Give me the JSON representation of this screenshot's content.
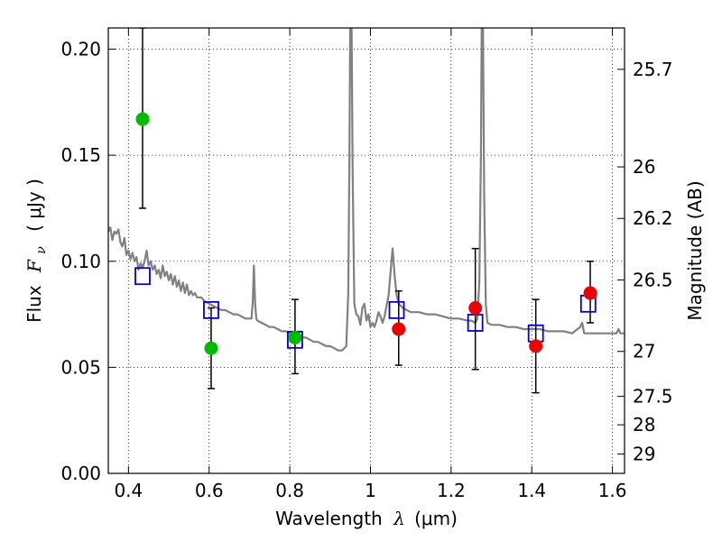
{
  "chart_data": {
    "type": "scatter",
    "xlabel_prefix": "Wavelength",
    "xlabel_symbol": "λ",
    "xlabel_unit": "(μm)",
    "ylabel_prefix": "Flux",
    "ylabel_symbol": "F",
    "ylabel_subscript": "ν",
    "ylabel_unit": "( μJy )",
    "y2label": "Magnitude (AB)",
    "xlim": [
      0.35,
      1.63
    ],
    "ylim": [
      0.0,
      0.21
    ],
    "grid": true,
    "x_ticks": [
      0.4,
      0.6,
      0.8,
      1.0,
      1.2,
      1.4,
      1.6
    ],
    "x_tick_labels": [
      "0.4",
      "0.6",
      "0.8",
      "1",
      "1.2",
      "1.4",
      "1.6"
    ],
    "y_ticks": [
      0.0,
      0.05,
      0.1,
      0.15,
      0.2
    ],
    "y_tick_labels": [
      "0.00",
      "0.05",
      "0.10",
      "0.15",
      "0.20"
    ],
    "y2_ticks": [
      {
        "label": "25.7",
        "flux": 0.1905
      },
      {
        "label": "26",
        "flux": 0.1445
      },
      {
        "label": "26.2",
        "flux": 0.1202
      },
      {
        "label": "26.5",
        "flux": 0.0912
      },
      {
        "label": "27",
        "flux": 0.0575
      },
      {
        "label": "27.5",
        "flux": 0.0363
      },
      {
        "label": "28",
        "flux": 0.0229
      },
      {
        "label": "29",
        "flux": 0.0091
      }
    ],
    "spectrum": {
      "color": "#808080",
      "points": [
        [
          0.35,
          0.114
        ],
        [
          0.355,
          0.116
        ],
        [
          0.36,
          0.11
        ],
        [
          0.365,
          0.114
        ],
        [
          0.37,
          0.113
        ],
        [
          0.375,
          0.115
        ],
        [
          0.38,
          0.109
        ],
        [
          0.385,
          0.107
        ],
        [
          0.39,
          0.111
        ],
        [
          0.395,
          0.103
        ],
        [
          0.4,
          0.105
        ],
        [
          0.405,
          0.101
        ],
        [
          0.41,
          0.104
        ],
        [
          0.415,
          0.1
        ],
        [
          0.42,
          0.102
        ],
        [
          0.425,
          0.096
        ],
        [
          0.43,
          0.099
        ],
        [
          0.435,
          0.097
        ],
        [
          0.44,
          0.1
        ],
        [
          0.445,
          0.105
        ],
        [
          0.45,
          0.098
        ],
        [
          0.455,
          0.1
        ],
        [
          0.46,
          0.096
        ],
        [
          0.465,
          0.098
        ],
        [
          0.47,
          0.094
        ],
        [
          0.475,
          0.096
        ],
        [
          0.48,
          0.092
        ],
        [
          0.485,
          0.098
        ],
        [
          0.49,
          0.093
        ],
        [
          0.495,
          0.095
        ],
        [
          0.5,
          0.091
        ],
        [
          0.505,
          0.094
        ],
        [
          0.51,
          0.089
        ],
        [
          0.515,
          0.093
        ],
        [
          0.52,
          0.088
        ],
        [
          0.525,
          0.091
        ],
        [
          0.53,
          0.086
        ],
        [
          0.535,
          0.09
        ],
        [
          0.54,
          0.085
        ],
        [
          0.545,
          0.089
        ],
        [
          0.55,
          0.084
        ],
        [
          0.555,
          0.086
        ],
        [
          0.56,
          0.084
        ],
        [
          0.565,
          0.085
        ],
        [
          0.57,
          0.083
        ],
        [
          0.58,
          0.083
        ],
        [
          0.59,
          0.081
        ],
        [
          0.6,
          0.08
        ],
        [
          0.61,
          0.079
        ],
        [
          0.62,
          0.078
        ],
        [
          0.63,
          0.077
        ],
        [
          0.64,
          0.077
        ],
        [
          0.65,
          0.076
        ],
        [
          0.66,
          0.075
        ],
        [
          0.67,
          0.075
        ],
        [
          0.68,
          0.074
        ],
        [
          0.69,
          0.073
        ],
        [
          0.7,
          0.073
        ],
        [
          0.705,
          0.073
        ],
        [
          0.708,
          0.08
        ],
        [
          0.711,
          0.098
        ],
        [
          0.714,
          0.08
        ],
        [
          0.717,
          0.073
        ],
        [
          0.72,
          0.072
        ],
        [
          0.73,
          0.071
        ],
        [
          0.74,
          0.07
        ],
        [
          0.75,
          0.069
        ],
        [
          0.76,
          0.069
        ],
        [
          0.77,
          0.068
        ],
        [
          0.78,
          0.067
        ],
        [
          0.79,
          0.067
        ],
        [
          0.8,
          0.066
        ],
        [
          0.81,
          0.065
        ],
        [
          0.82,
          0.065
        ],
        [
          0.83,
          0.064
        ],
        [
          0.84,
          0.064
        ],
        [
          0.85,
          0.063
        ],
        [
          0.86,
          0.062
        ],
        [
          0.87,
          0.062
        ],
        [
          0.88,
          0.061
        ],
        [
          0.89,
          0.06
        ],
        [
          0.9,
          0.06
        ],
        [
          0.91,
          0.059
        ],
        [
          0.92,
          0.058
        ],
        [
          0.93,
          0.058
        ],
        [
          0.94,
          0.06
        ],
        [
          0.945,
          0.085
        ],
        [
          0.948,
          0.15
        ],
        [
          0.95,
          0.215
        ],
        [
          0.953,
          0.215
        ],
        [
          0.956,
          0.14
        ],
        [
          0.96,
          0.08
        ],
        [
          0.965,
          0.075
        ],
        [
          0.97,
          0.074
        ],
        [
          0.975,
          0.07
        ],
        [
          0.98,
          0.078
        ],
        [
          0.985,
          0.08
        ],
        [
          0.99,
          0.072
        ],
        [
          0.995,
          0.075
        ],
        [
          1.0,
          0.069
        ],
        [
          1.005,
          0.071
        ],
        [
          1.01,
          0.069
        ],
        [
          1.015,
          0.072
        ],
        [
          1.02,
          0.076
        ],
        [
          1.025,
          0.074
        ],
        [
          1.03,
          0.071
        ],
        [
          1.035,
          0.074
        ],
        [
          1.04,
          0.079
        ],
        [
          1.045,
          0.084
        ],
        [
          1.05,
          0.095
        ],
        [
          1.055,
          0.106
        ],
        [
          1.06,
          0.093
        ],
        [
          1.065,
          0.084
        ],
        [
          1.07,
          0.08
        ],
        [
          1.08,
          0.078
        ],
        [
          1.09,
          0.077
        ],
        [
          1.1,
          0.076
        ],
        [
          1.12,
          0.076
        ],
        [
          1.14,
          0.075
        ],
        [
          1.16,
          0.075
        ],
        [
          1.18,
          0.074
        ],
        [
          1.2,
          0.073
        ],
        [
          1.22,
          0.073
        ],
        [
          1.24,
          0.072
        ],
        [
          1.25,
          0.072
        ],
        [
          1.26,
          0.071
        ],
        [
          1.265,
          0.073
        ],
        [
          1.27,
          0.09
        ],
        [
          1.274,
          0.15
        ],
        [
          1.276,
          0.215
        ],
        [
          1.279,
          0.215
        ],
        [
          1.282,
          0.13
        ],
        [
          1.286,
          0.08
        ],
        [
          1.29,
          0.071
        ],
        [
          1.3,
          0.07
        ],
        [
          1.32,
          0.07
        ],
        [
          1.34,
          0.069
        ],
        [
          1.36,
          0.069
        ],
        [
          1.38,
          0.068
        ],
        [
          1.4,
          0.068
        ],
        [
          1.42,
          0.068
        ],
        [
          1.44,
          0.067
        ],
        [
          1.46,
          0.067
        ],
        [
          1.48,
          0.067
        ],
        [
          1.5,
          0.066
        ],
        [
          1.52,
          0.069
        ],
        [
          1.525,
          0.071
        ],
        [
          1.53,
          0.066
        ],
        [
          1.54,
          0.066
        ],
        [
          1.56,
          0.066
        ],
        [
          1.58,
          0.066
        ],
        [
          1.6,
          0.066
        ],
        [
          1.61,
          0.066
        ],
        [
          1.615,
          0.068
        ],
        [
          1.62,
          0.066
        ],
        [
          1.63,
          0.066
        ]
      ]
    },
    "model_points": {
      "color": "#0000cc",
      "marker": "open-square",
      "points": [
        {
          "x": 0.435,
          "y": 0.093
        },
        {
          "x": 0.605,
          "y": 0.077
        },
        {
          "x": 0.813,
          "y": 0.063
        },
        {
          "x": 1.065,
          "y": 0.077
        },
        {
          "x": 1.26,
          "y": 0.071
        },
        {
          "x": 1.41,
          "y": 0.066
        },
        {
          "x": 1.54,
          "y": 0.08
        }
      ]
    },
    "observations": [
      {
        "x": 0.435,
        "y": 0.167,
        "ylow": 0.125,
        "yhigh": 0.21,
        "color": "#00bb00"
      },
      {
        "x": 0.605,
        "y": 0.059,
        "ylow": 0.04,
        "yhigh": 0.078,
        "color": "#00bb00"
      },
      {
        "x": 0.813,
        "y": 0.064,
        "ylow": 0.047,
        "yhigh": 0.082,
        "color": "#00bb00"
      },
      {
        "x": 1.07,
        "y": 0.068,
        "ylow": 0.051,
        "yhigh": 0.086,
        "color": "#ee0000"
      },
      {
        "x": 1.26,
        "y": 0.078,
        "ylow": 0.049,
        "yhigh": 0.106,
        "color": "#ee0000"
      },
      {
        "x": 1.41,
        "y": 0.06,
        "ylow": 0.038,
        "yhigh": 0.082,
        "color": "#ee0000"
      },
      {
        "x": 1.545,
        "y": 0.085,
        "ylow": 0.071,
        "yhigh": 0.1,
        "color": "#ee0000"
      }
    ]
  }
}
